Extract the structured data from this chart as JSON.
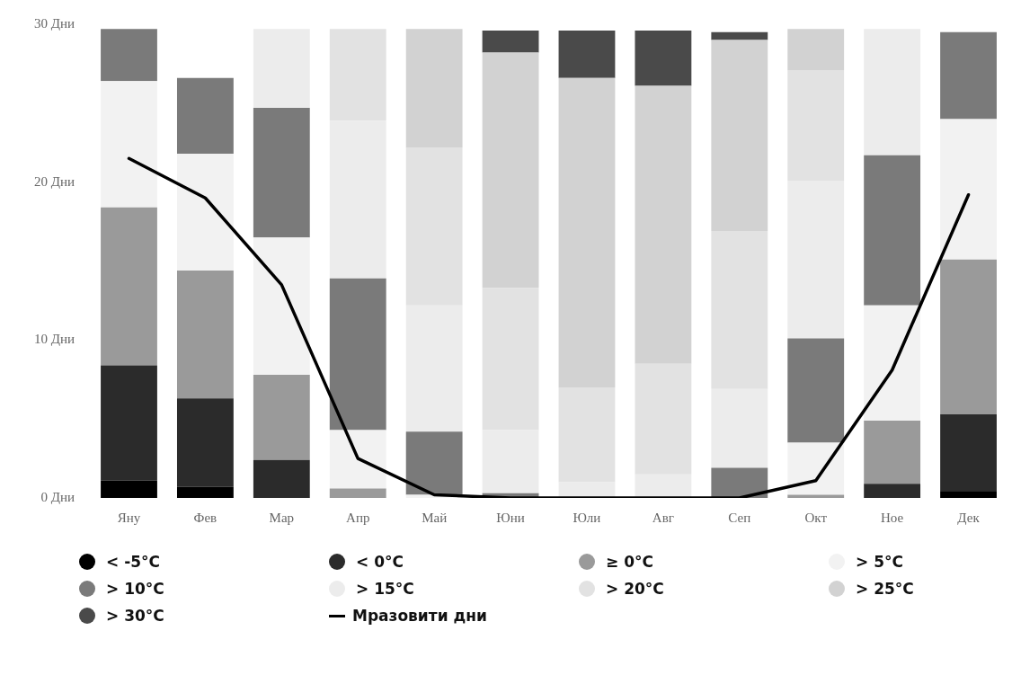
{
  "chart_data": {
    "type": "bar",
    "stacked": true,
    "categories": [
      "Яну",
      "Фев",
      "Мар",
      "Апр",
      "Май",
      "Юни",
      "Юли",
      "Авг",
      "Сеп",
      "Окт",
      "Ное",
      "Дек"
    ],
    "ylim": [
      0,
      30
    ],
    "yticks": [
      {
        "value": 0,
        "label": "0 Дни"
      },
      {
        "value": 10,
        "label": "10 Дни"
      },
      {
        "value": 20,
        "label": "20 Дни"
      },
      {
        "value": 30,
        "label": "30 Дни"
      }
    ],
    "grid": false,
    "legend": "bottom",
    "marker": "none",
    "line_style": "solid",
    "series": [
      {
        "name": "< -5°C",
        "color": "#000000",
        "values": [
          1.1,
          0.7,
          0,
          0,
          0,
          0,
          0,
          0,
          0,
          0,
          0,
          0.4
        ]
      },
      {
        "name": "< 0°C",
        "color": "#2b2b2b",
        "values": [
          7.3,
          5.6,
          2.4,
          0,
          0,
          0,
          0,
          0,
          0,
          0,
          0.9,
          4.9
        ]
      },
      {
        "name": "≥ 0°C",
        "color": "#9a9a9a",
        "values": [
          10.0,
          8.1,
          5.4,
          0.6,
          0,
          0,
          0,
          0,
          0,
          0.2,
          4.0,
          9.8
        ]
      },
      {
        "name": "> 5°C",
        "color": "#f2f2f2",
        "values": [
          8.0,
          7.4,
          8.7,
          3.7,
          0.2,
          0,
          0,
          0,
          0,
          3.3,
          7.3,
          8.9
        ]
      },
      {
        "name": "> 10°C",
        "color": "#7a7a7a",
        "values": [
          3.3,
          4.8,
          8.2,
          9.6,
          4.0,
          0.3,
          0,
          0,
          1.9,
          6.6,
          9.5,
          5.5
        ]
      },
      {
        "name": "> 15°C",
        "color": "#ececec",
        "values": [
          0,
          0,
          5.0,
          10.0,
          8.0,
          4.0,
          1.0,
          1.5,
          5.0,
          10.0,
          8.0,
          0
        ]
      },
      {
        "name": "> 20°C",
        "color": "#e2e2e2",
        "values": [
          0,
          0,
          0,
          5.8,
          10.0,
          9.0,
          6.0,
          7.0,
          10.0,
          7.0,
          0,
          0
        ]
      },
      {
        "name": "> 25°C",
        "color": "#d2d2d2",
        "values": [
          0,
          0,
          0,
          0,
          7.5,
          14.9,
          19.6,
          17.6,
          12.1,
          2.6,
          0,
          0
        ]
      },
      {
        "name": "> 30°C",
        "color": "#4a4a4a",
        "values": [
          0,
          0,
          0,
          0,
          0,
          1.4,
          3.0,
          3.5,
          0.5,
          0,
          0,
          0
        ]
      },
      {
        "name": "Мразовити дни",
        "type": "line",
        "color": "#000000",
        "values": [
          21.5,
          19.0,
          13.5,
          2.5,
          0.2,
          0,
          0,
          0,
          0,
          1.1,
          8.1,
          19.2
        ]
      }
    ]
  }
}
